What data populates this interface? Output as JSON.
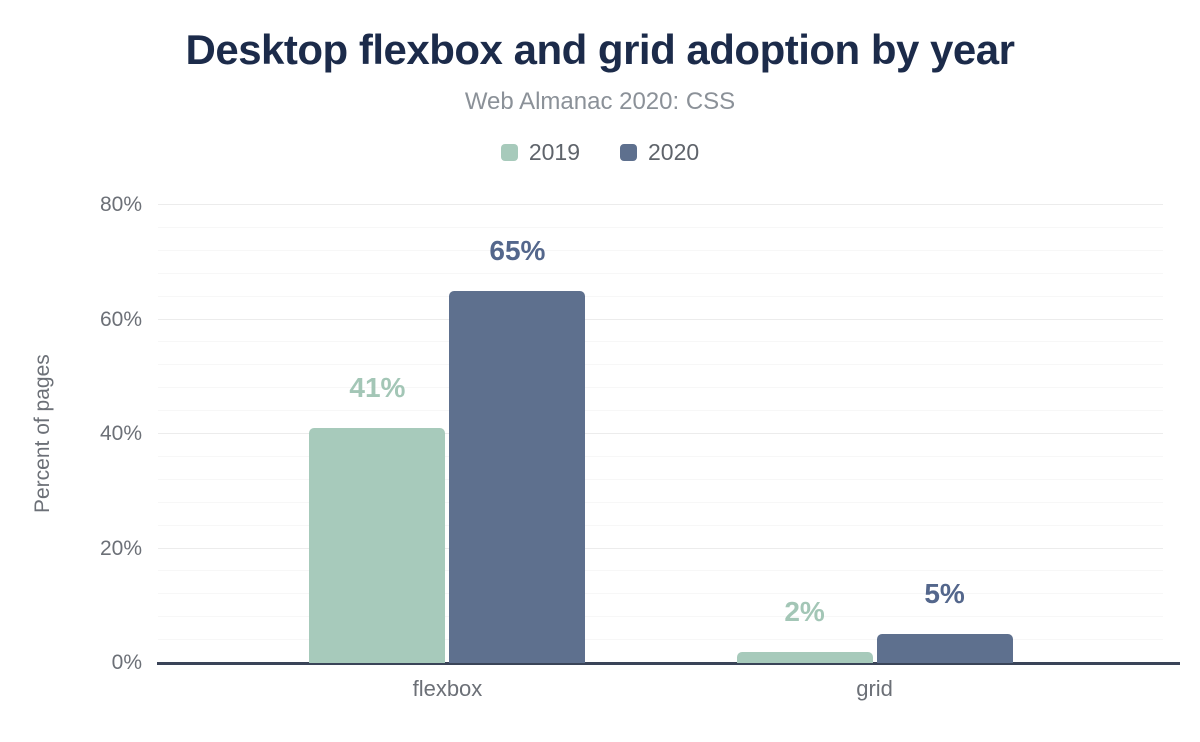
{
  "chart_data": {
    "type": "bar",
    "title": "Desktop flexbox and grid adoption by year",
    "subtitle": "Web Almanac 2020: CSS",
    "categories": [
      "flexbox",
      "grid"
    ],
    "series": [
      {
        "name": "2019",
        "values": [
          41,
          2
        ],
        "labels": [
          "41%",
          "2%"
        ],
        "color": "#a7cabb",
        "label_color": "#a3c6b6"
      },
      {
        "name": "2020",
        "values": [
          65,
          5
        ],
        "labels": [
          "65%",
          "5%"
        ],
        "color": "#5e708e",
        "label_color": "#54678c"
      }
    ],
    "xlabel": "",
    "ylabel": "Percent of pages",
    "ylim": [
      0,
      80
    ],
    "yticks": [
      0,
      20,
      40,
      60,
      80
    ],
    "ytick_labels": [
      "0%",
      "20%",
      "40%",
      "60%",
      "80%"
    ],
    "minor_grid_step": 4,
    "value_suffix": "%",
    "grid": true,
    "legend_position": "top",
    "colors": {
      "title": "#1c2b4a",
      "subtitle": "#8b9198",
      "axis_line": "#3a4458",
      "tick_text": "#6c7077",
      "legend_text": "#5f646b",
      "gridline_major": "#ececec",
      "gridline_minor": "#f7f7f7",
      "background": "#ffffff"
    }
  }
}
